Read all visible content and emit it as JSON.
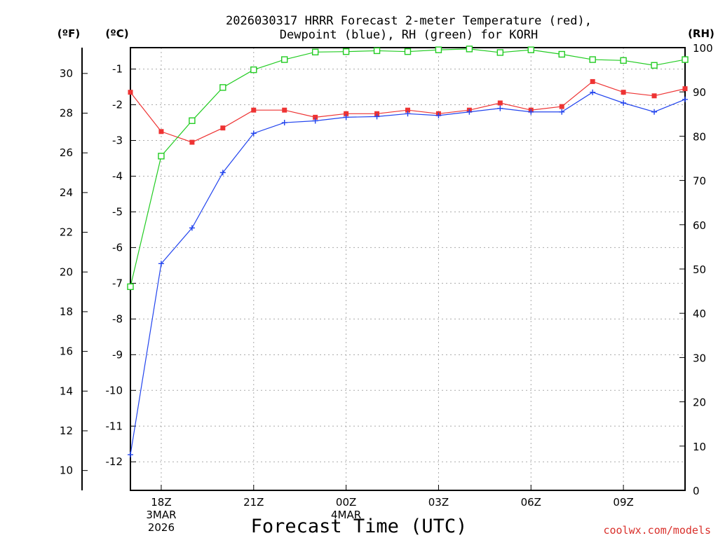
{
  "chart_data": {
    "type": "line",
    "title_line1": "2026030317 HRRR Forecast 2-meter Temperature (red),",
    "title_line2": "Dewpoint (blue), RH (green) for KORH",
    "units": {
      "fahrenheit": "(ºF)",
      "celsius": "(ºC)",
      "rh": "(RH)"
    },
    "xlabel": "Forecast Time (UTC)",
    "credit": "coolwx.com/models",
    "x_start_hour": 17,
    "x_end_hour": 35,
    "x_ticks": [
      {
        "hour": 18,
        "label": "18Z",
        "sub1": "3MAR",
        "sub2": "2026"
      },
      {
        "hour": 21,
        "label": "21Z",
        "sub1": "",
        "sub2": ""
      },
      {
        "hour": 24,
        "label": "00Z",
        "sub1": "4MAR",
        "sub2": ""
      },
      {
        "hour": 27,
        "label": "03Z",
        "sub1": "",
        "sub2": ""
      },
      {
        "hour": 30,
        "label": "06Z",
        "sub1": "",
        "sub2": ""
      },
      {
        "hour": 33,
        "label": "09Z",
        "sub1": "",
        "sub2": ""
      }
    ],
    "celsius_axis": {
      "min": -12.8,
      "max": -0.4,
      "ticks": [
        "-12",
        "-11",
        "-10",
        "-9",
        "-8",
        "-7",
        "-6",
        "-5",
        "-4",
        "-3",
        "-2",
        "-1"
      ]
    },
    "fahrenheit_axis": {
      "min": 9.0,
      "max": 31.3,
      "ticks": [
        "10",
        "12",
        "14",
        "16",
        "18",
        "20",
        "22",
        "24",
        "26",
        "28",
        "30"
      ]
    },
    "rh_axis": {
      "min": 0,
      "max": 100,
      "ticks": [
        "0",
        "10",
        "20",
        "30",
        "40",
        "50",
        "60",
        "70",
        "80",
        "90",
        "100"
      ]
    },
    "hours": [
      17,
      18,
      19,
      20,
      21,
      22,
      23,
      24,
      25,
      26,
      27,
      28,
      29,
      30,
      31,
      32,
      33,
      34,
      35
    ],
    "series": [
      {
        "name": "Temperature",
        "unit": "C",
        "color": "#ee3333",
        "marker": "filled-square",
        "values": [
          -1.65,
          -2.75,
          -3.05,
          -2.65,
          -2.15,
          -2.15,
          -2.35,
          -2.25,
          -2.25,
          -2.15,
          -2.25,
          -2.15,
          -1.95,
          -2.15,
          -2.05,
          -1.35,
          -1.65,
          -1.75,
          -1.55
        ]
      },
      {
        "name": "Dewpoint",
        "unit": "C",
        "color": "#2244ee",
        "marker": "plus",
        "values": [
          -11.8,
          -6.45,
          -5.45,
          -3.9,
          -2.8,
          -2.5,
          -2.45,
          -2.35,
          -2.33,
          -2.25,
          -2.3,
          -2.2,
          -2.1,
          -2.2,
          -2.2,
          -1.65,
          -1.95,
          -2.2,
          -1.85
        ]
      },
      {
        "name": "RH",
        "unit": "%",
        "color": "#22cc22",
        "marker": "open-square",
        "values": [
          46,
          75.5,
          83.5,
          91,
          95,
          97.3,
          99,
          99.1,
          99.3,
          99.1,
          99.5,
          99.7,
          98.9,
          99.5,
          98.5,
          97.3,
          97.1,
          96,
          97.3
        ]
      }
    ]
  }
}
